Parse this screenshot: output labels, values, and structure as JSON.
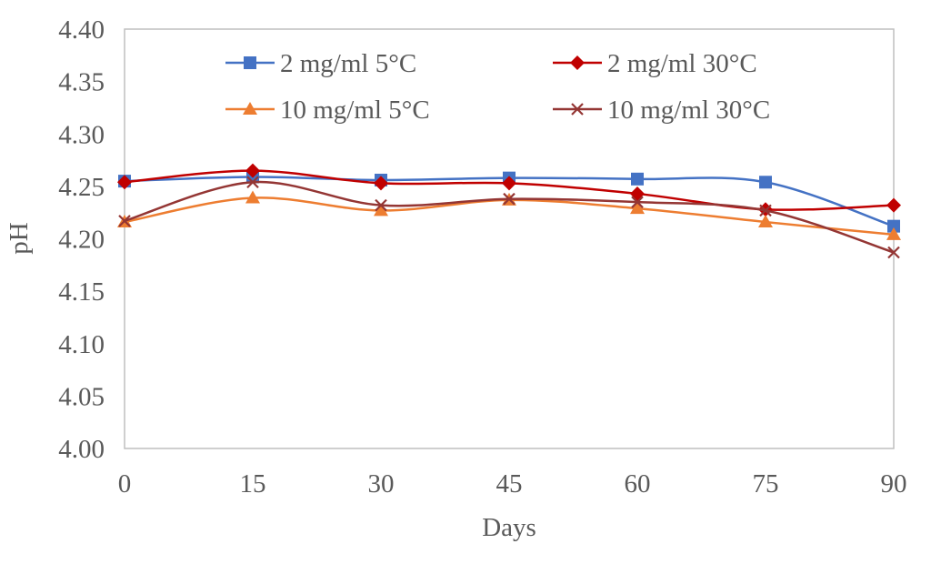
{
  "chart_data": {
    "type": "line",
    "title": "",
    "xlabel": "Days",
    "ylabel": "pH",
    "x": [
      0,
      15,
      30,
      45,
      60,
      75,
      90
    ],
    "x_tick_labels": [
      "0",
      "15",
      "30",
      "45",
      "60",
      "75",
      "90"
    ],
    "ylim": [
      4.0,
      4.4
    ],
    "y_ticks": [
      4.0,
      4.05,
      4.1,
      4.15,
      4.2,
      4.25,
      4.3,
      4.35,
      4.4
    ],
    "y_tick_labels": [
      "4.00",
      "4.05",
      "4.10",
      "4.15",
      "4.20",
      "4.25",
      "4.30",
      "4.35",
      "4.40"
    ],
    "grid": false,
    "legend_position": "top",
    "series": [
      {
        "name": "2 mg/ml 5°C",
        "marker": "square",
        "color": "#4472C4",
        "values": [
          4.255,
          4.259,
          4.256,
          4.258,
          4.257,
          4.254,
          4.212
        ]
      },
      {
        "name": "2 mg/ml 30°C",
        "marker": "diamond",
        "color": "#C00000",
        "values": [
          4.254,
          4.265,
          4.253,
          4.253,
          4.243,
          4.228,
          4.232
        ]
      },
      {
        "name": "10 mg/ml 5°C",
        "marker": "triangle",
        "color": "#ED7D31",
        "values": [
          4.216,
          4.239,
          4.227,
          4.237,
          4.229,
          4.216,
          4.204
        ]
      },
      {
        "name": "10 mg/ml 30°C",
        "marker": "x",
        "color": "#943634",
        "values": [
          4.217,
          4.254,
          4.232,
          4.238,
          4.235,
          4.227,
          4.187
        ]
      }
    ]
  }
}
